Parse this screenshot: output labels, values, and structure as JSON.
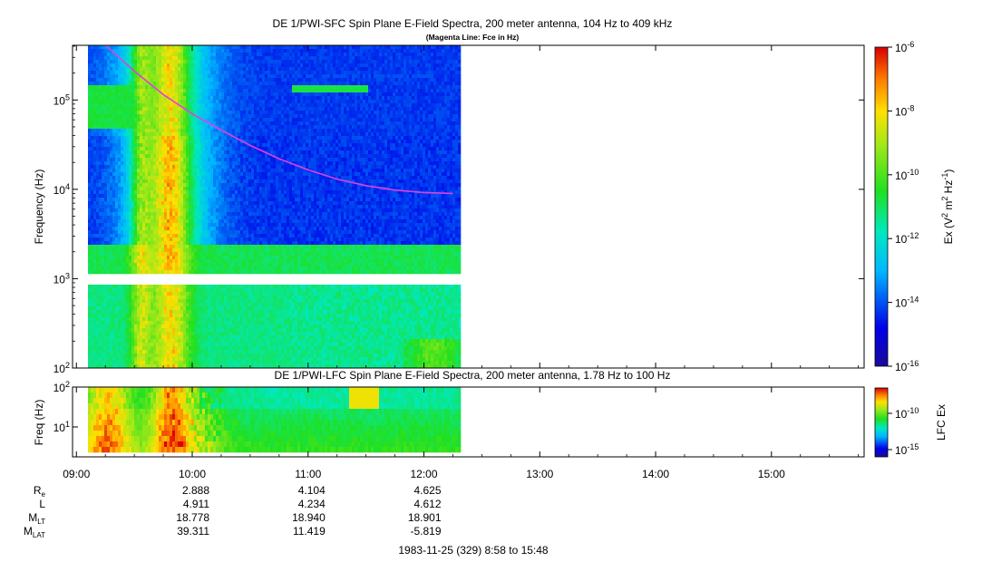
{
  "chart_data": [
    {
      "type": "heatmap",
      "title": "DE 1/PWI-SFC  Spin Plane E-Field Spectra, 200 meter antenna, 104 Hz to 409 kHz",
      "subtitle": "(Magenta Line: Fce in Hz)",
      "ylabel": "Frequency (Hz)",
      "yscale": "log",
      "ylim": [
        100,
        409000
      ],
      "y_ticks": [
        {
          "value": 100,
          "base": "10",
          "exp": "2"
        },
        {
          "value": 1000,
          "base": "10",
          "exp": "3"
        },
        {
          "value": 10000,
          "base": "10",
          "exp": "4"
        },
        {
          "value": 100000,
          "base": "10",
          "exp": "5"
        }
      ],
      "data_time_range": [
        "09:06",
        "12:18"
      ],
      "colorbar": {
        "label_parts": [
          "Ex (V",
          "2",
          " m",
          "2",
          " Hz",
          "-1",
          ")"
        ],
        "scale": "log",
        "range": [
          1e-16,
          1e-06
        ],
        "ticks": [
          {
            "value": 1e-06,
            "base": "10",
            "exp": "-6"
          },
          {
            "value": 1e-08,
            "base": "10",
            "exp": "-8"
          },
          {
            "value": 1e-10,
            "base": "10",
            "exp": "-10"
          },
          {
            "value": 1e-12,
            "base": "10",
            "exp": "-12"
          },
          {
            "value": 1e-14,
            "base": "10",
            "exp": "-14"
          },
          {
            "value": 1e-16,
            "base": "10",
            "exp": "-16"
          }
        ]
      },
      "fce_line": {
        "name": "Fce",
        "color": "#e040e0",
        "points": [
          {
            "t": "09:13",
            "f": 450000
          },
          {
            "t": "09:30",
            "f": 210000
          },
          {
            "t": "09:45",
            "f": 115000
          },
          {
            "t": "10:00",
            "f": 70000
          },
          {
            "t": "10:15",
            "f": 46000
          },
          {
            "t": "10:30",
            "f": 31000
          },
          {
            "t": "10:45",
            "f": 22000
          },
          {
            "t": "11:00",
            "f": 16500
          },
          {
            "t": "11:15",
            "f": 13000
          },
          {
            "t": "11:30",
            "f": 11000
          },
          {
            "t": "11:45",
            "f": 9800
          },
          {
            "t": "12:00",
            "f": 9200
          },
          {
            "t": "12:15",
            "f": 9000
          }
        ]
      }
    },
    {
      "type": "heatmap",
      "title": "DE 1/PWI-LFC  Spin Plane E-Field Spectra, 200 meter antenna, 1.78 Hz to 100 Hz",
      "ylabel": "Freq (Hz)",
      "yscale": "log",
      "ylim": [
        1.78,
        100
      ],
      "y_ticks": [
        {
          "value": 100,
          "base": "10",
          "exp": "2"
        },
        {
          "value": 10,
          "base": "10",
          "exp": "1"
        }
      ],
      "colorbar": {
        "label": "LFC Ex",
        "scale": "log",
        "ticks": [
          {
            "value": 1e-10,
            "base": "10",
            "exp": "-10"
          },
          {
            "value": 1e-15,
            "base": "10",
            "exp": "-15"
          }
        ]
      }
    }
  ],
  "time_axis": {
    "range": [
      "08:58",
      "15:48"
    ],
    "ticks": [
      "09:00",
      "10:00",
      "11:00",
      "12:00",
      "13:00",
      "14:00",
      "15:00"
    ]
  },
  "ephemeris": {
    "rows": [
      {
        "label": "R",
        "sub": "e",
        "values": [
          "2.888",
          "4.104",
          "4.625"
        ]
      },
      {
        "label": "L",
        "sub": "",
        "values": [
          "4.911",
          "4.234",
          "4.612"
        ]
      },
      {
        "label": "M",
        "sub": "LT",
        "values": [
          "18.778",
          "18.940",
          "18.901"
        ]
      },
      {
        "label": "M",
        "sub": "LAT",
        "values": [
          "39.311",
          "11.419",
          "-5.819"
        ]
      }
    ]
  },
  "footer": "1983-11-25 (329) 8:58 to 15:48"
}
